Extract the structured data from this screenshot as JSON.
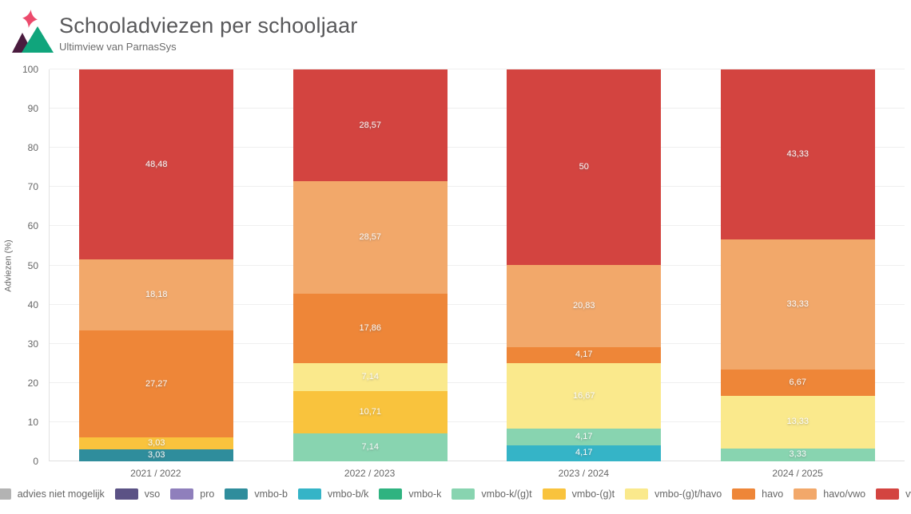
{
  "header": {
    "title": "Schooladviezen per schooljaar",
    "subtitle": "Ultimview van ParnasSys"
  },
  "logo": {
    "star_color": "#ec4a6c",
    "left_mountain_color": "#4a1b3e",
    "right_mountain_color": "#10a57c"
  },
  "chart_data": {
    "type": "bar",
    "stacked": true,
    "title": "Schooladviezen per schooljaar",
    "xlabel": "",
    "ylabel": "Adviezen (%)",
    "ylim": [
      0,
      100
    ],
    "ytick_step": 10,
    "grid": true,
    "legend_position": "bottom",
    "categories": [
      "2021 / 2022",
      "2022 / 2023",
      "2023 / 2024",
      "2024 / 2025"
    ],
    "series": [
      {
        "name": "advies niet mogelijk",
        "color": "#b3b3b3",
        "values": [
          0,
          0,
          0,
          0
        ]
      },
      {
        "name": "vso",
        "color": "#5b5285",
        "values": [
          0,
          0,
          0,
          0
        ]
      },
      {
        "name": "pro",
        "color": "#8f7fbc",
        "values": [
          0,
          0,
          0,
          0
        ]
      },
      {
        "name": "vmbo-b",
        "color": "#2f8d9c",
        "values": [
          3.03,
          0,
          0,
          0
        ]
      },
      {
        "name": "vmbo-b/k",
        "color": "#35b4c7",
        "values": [
          0,
          0,
          4.17,
          0
        ]
      },
      {
        "name": "vmbo-k",
        "color": "#2fb380",
        "values": [
          0,
          0,
          0,
          0
        ]
      },
      {
        "name": "vmbo-k/(g)t",
        "color": "#88d4b0",
        "values": [
          0,
          7.14,
          4.17,
          3.33
        ]
      },
      {
        "name": "vmbo-(g)t",
        "color": "#f9c33d",
        "values": [
          3.03,
          10.71,
          0,
          0
        ]
      },
      {
        "name": "vmbo-(g)t/havo",
        "color": "#fae98c",
        "values": [
          0,
          7.14,
          16.67,
          13.33
        ]
      },
      {
        "name": "havo",
        "color": "#ee8638",
        "values": [
          27.27,
          17.86,
          4.17,
          6.67
        ]
      },
      {
        "name": "havo/vwo",
        "color": "#f2a86a",
        "values": [
          18.18,
          28.57,
          20.83,
          33.33
        ]
      },
      {
        "name": "vwo",
        "color": "#d34440",
        "values": [
          48.48,
          28.57,
          50,
          43.33
        ]
      }
    ],
    "segment_labels": {
      "2021 / 2022": [
        "3,03",
        "3,03",
        "27,27",
        "18,18",
        "48,48"
      ],
      "2022 / 2023": [
        "7,14",
        "10,71",
        "7,14",
        "17,86",
        "28,57",
        "28,57"
      ],
      "2023 / 2024": [
        "4,17",
        "4,17",
        "16,67",
        "4,17",
        "20,83",
        "50"
      ],
      "2024 / 2025": [
        "3,33",
        "13,33",
        "6,67",
        "33,33",
        "43,33"
      ]
    }
  }
}
